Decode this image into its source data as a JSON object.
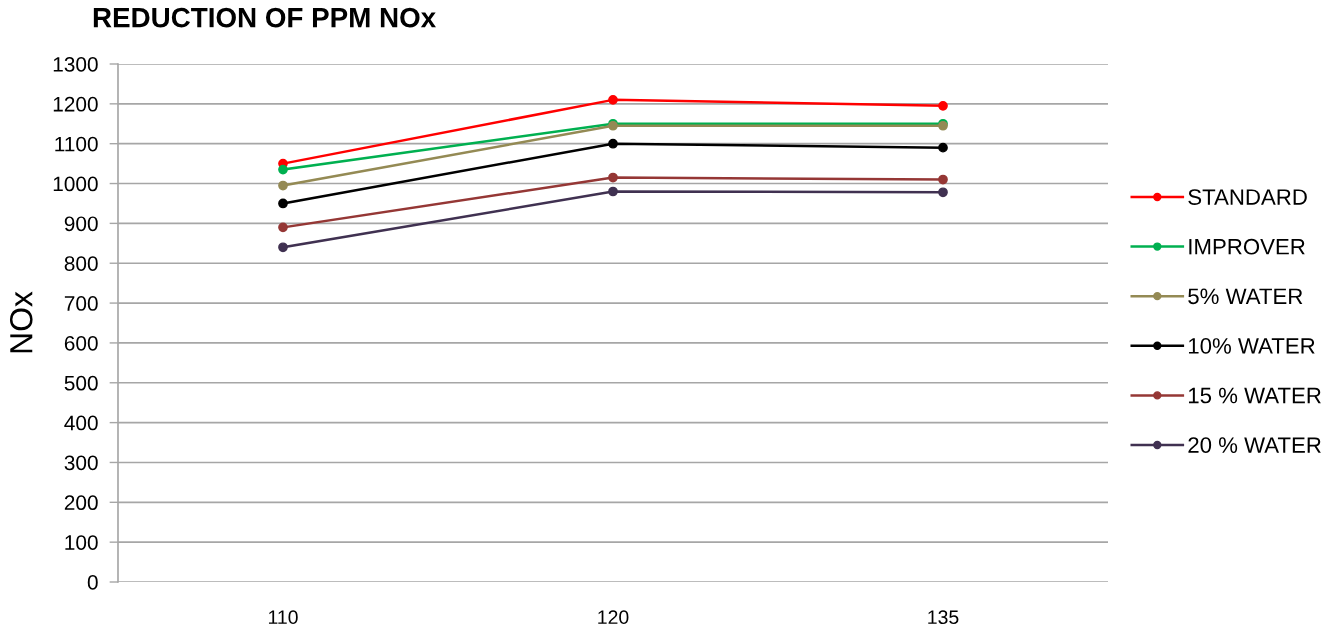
{
  "chart_data": {
    "type": "line",
    "title": "REDUCTION OF PPM NOx",
    "ylabel": "NOx",
    "categories": [
      "110",
      "120",
      "135"
    ],
    "series": [
      {
        "name": "STANDARD",
        "color": "#ff0000",
        "values": [
          1050,
          1210,
          1195
        ]
      },
      {
        "name": "IMPROVER",
        "color": "#00b050",
        "values": [
          1035,
          1150,
          1150
        ]
      },
      {
        "name": "5% WATER",
        "color": "#948a54",
        "values": [
          995,
          1145,
          1145
        ]
      },
      {
        "name": "10% WATER",
        "color": "#000000",
        "values": [
          950,
          1100,
          1090
        ]
      },
      {
        "name": "15 % WATER",
        "color": "#953735",
        "values": [
          890,
          1015,
          1010
        ]
      },
      {
        "name": "20 % WATER",
        "color": "#403151",
        "values": [
          840,
          980,
          978
        ]
      }
    ],
    "ylim": [
      0,
      1300
    ],
    "yticks": [
      0,
      100,
      200,
      300,
      400,
      500,
      600,
      700,
      800,
      900,
      1000,
      1100,
      1200,
      1300
    ],
    "grid": "y",
    "legend": "right",
    "marker": "circle",
    "line_style": "solid"
  }
}
